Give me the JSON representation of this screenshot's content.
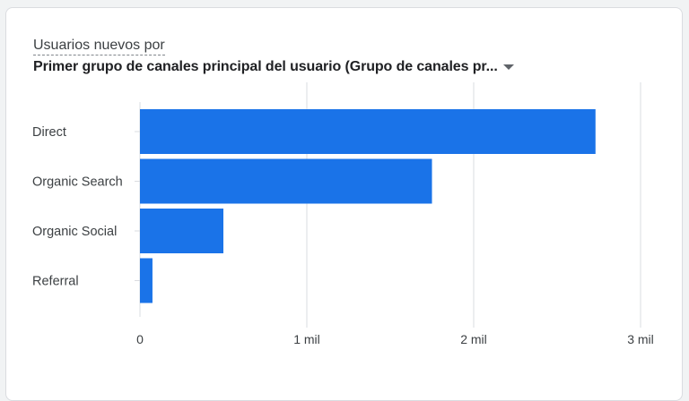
{
  "card": {
    "metric_label": "Usuarios nuevos por",
    "dimension_label": "Primer grupo de canales principal del usuario (Grupo de canales pr...",
    "dropdown_icon": "dropdown-arrow-icon"
  },
  "colors": {
    "bar": "#1a73e8",
    "grid": "#dadce0",
    "text": "#3c4043"
  },
  "chart_data": {
    "type": "bar",
    "orientation": "horizontal",
    "categories": [
      "Direct",
      "Organic Search",
      "Organic Social",
      "Referral"
    ],
    "values": [
      2730,
      1750,
      500,
      75
    ],
    "xlim": [
      0,
      3000
    ],
    "x_ticks": [
      0,
      1000,
      2000,
      3000
    ],
    "x_tick_labels": [
      "0",
      "1 mil",
      "2 mil",
      "3 mil"
    ],
    "grid": true
  }
}
